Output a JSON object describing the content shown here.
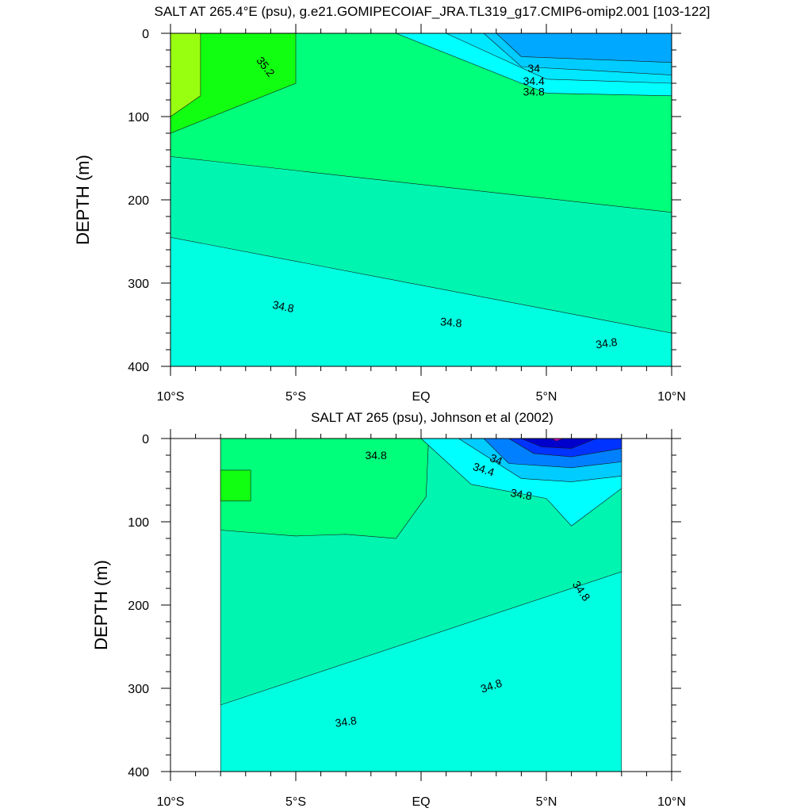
{
  "chart_data": [
    {
      "type": "contour",
      "title": "SALT AT 265.4°E (psu), g.e21.GOMIPECOIAF_JRA.TL319_g17.CMIP6-omip2.001 [103-122]",
      "xlabel": "",
      "ylabel": "DEPTH (m)",
      "xlim": [
        -10,
        10
      ],
      "ylim": [
        400,
        0
      ],
      "x_ticks": [
        -10,
        -5,
        0,
        5,
        10
      ],
      "x_tick_labels": [
        "10°S",
        "5°S",
        "EQ",
        "5°N",
        "10°N"
      ],
      "y_ticks": [
        0,
        100,
        200,
        300,
        400
      ],
      "y_tick_labels": [
        "0",
        "100",
        "200",
        "300",
        "400"
      ],
      "data_extent_x": [
        -10,
        10
      ],
      "contour_labels": [
        {
          "text": "35.2",
          "x": -6.2,
          "depth": 40,
          "angle": 52
        },
        {
          "text": "34",
          "x": 4.5,
          "depth": 42,
          "angle": 0
        },
        {
          "text": "34.4",
          "x": 4.5,
          "depth": 57,
          "angle": 0
        },
        {
          "text": "34.8",
          "x": 4.5,
          "depth": 70,
          "angle": 0
        },
        {
          "text": "34.8",
          "x": -5.5,
          "depth": 328,
          "angle": 12
        },
        {
          "text": "34.8",
          "x": 1.2,
          "depth": 347,
          "angle": 5
        },
        {
          "text": "34.8",
          "x": 7.4,
          "depth": 372,
          "angle": -8
        }
      ],
      "regions": [
        {
          "color": "#00ffe0",
          "x": [
            -10,
            10,
            10,
            -10
          ],
          "depth": [
            0,
            0,
            400,
            400
          ]
        },
        {
          "color": "#00f5b0",
          "x": [
            -10,
            -8,
            -6,
            -4,
            -2,
            0,
            2,
            4,
            6,
            8,
            10,
            10,
            -10
          ],
          "depth": [
            0,
            0,
            0,
            0,
            0,
            0,
            0,
            0,
            0,
            0,
            0,
            360,
            245
          ]
        },
        {
          "color": "#00ff7a",
          "x": [
            -10,
            -8,
            -6,
            -5,
            -4,
            -2,
            0,
            1,
            2,
            3,
            4,
            5,
            6,
            7,
            8,
            9,
            10,
            10,
            -10
          ],
          "depth": [
            0,
            0,
            0,
            0,
            0,
            0,
            0,
            0,
            0,
            0,
            0,
            0,
            0,
            0,
            0,
            0,
            0,
            215,
            148
          ]
        },
        {
          "color": "#11ff11",
          "x": [
            -10,
            -5,
            -5,
            -10
          ],
          "depth": [
            0,
            0,
            60,
            120
          ]
        },
        {
          "color": "#99ff11",
          "x": [
            -10,
            -8.8,
            -8.8,
            -10
          ],
          "depth": [
            0,
            0,
            75,
            100
          ]
        },
        {
          "color": "#00ffff",
          "x": [
            -1,
            10,
            10,
            5,
            -1
          ],
          "depth": [
            0,
            0,
            75,
            72,
            0
          ]
        },
        {
          "color": "#00e8ff",
          "x": [
            1,
            10,
            10,
            5,
            1
          ],
          "depth": [
            0,
            0,
            60,
            55,
            0
          ]
        },
        {
          "color": "#00ccff",
          "x": [
            2.5,
            10,
            10,
            4,
            2.5
          ],
          "depth": [
            0,
            0,
            50,
            40,
            0
          ]
        },
        {
          "color": "#00a8ff",
          "x": [
            3,
            10,
            10,
            4,
            3
          ],
          "depth": [
            0,
            0,
            35,
            28,
            0
          ]
        }
      ]
    },
    {
      "type": "contour",
      "title": "SALT AT 265 (psu), Johnson et al (2002)",
      "xlabel": "",
      "ylabel": "DEPTH (m)",
      "xlim": [
        -10,
        10
      ],
      "ylim": [
        400,
        0
      ],
      "x_ticks": [
        -10,
        -5,
        0,
        5,
        10
      ],
      "x_tick_labels": [
        "10°S",
        "5°S",
        "EQ",
        "5°N",
        "10°N"
      ],
      "y_ticks": [
        0,
        100,
        200,
        300,
        400
      ],
      "y_tick_labels": [
        "0",
        "100",
        "200",
        "300",
        "400"
      ],
      "data_extent_x": [
        -8,
        8
      ],
      "contour_labels": [
        {
          "text": "34.8",
          "x": -1.8,
          "depth": 20,
          "angle": 0
        },
        {
          "text": "34",
          "x": 3,
          "depth": 25,
          "angle": 22
        },
        {
          "text": "34.4",
          "x": 2.5,
          "depth": 37,
          "angle": 18
        },
        {
          "text": "34.8",
          "x": 4,
          "depth": 67,
          "angle": 10
        },
        {
          "text": "34.8",
          "x": 6.4,
          "depth": 183,
          "angle": 55
        },
        {
          "text": "34.8",
          "x": 2.8,
          "depth": 297,
          "angle": -18
        },
        {
          "text": "34.8",
          "x": -3,
          "depth": 340,
          "angle": -8
        }
      ],
      "regions": [
        {
          "color": "#00ffe0",
          "x": [
            -8,
            8,
            8,
            -8
          ],
          "depth": [
            0,
            0,
            400,
            400
          ]
        },
        {
          "color": "#00f5b0",
          "x": [
            -8,
            -7.5,
            -6,
            -4,
            -2,
            0,
            2,
            4,
            5,
            6,
            7,
            8,
            8,
            -8
          ],
          "depth": [
            0,
            0,
            0,
            0,
            0,
            0,
            0,
            0,
            0,
            0,
            0,
            0,
            160,
            320
          ]
        },
        {
          "color": "#00ff7a",
          "x": [
            -8,
            -6.5,
            -5,
            -3.5,
            -1,
            0.3,
            0.2,
            -1,
            -3,
            -5,
            -8
          ],
          "depth": [
            0,
            0,
            0,
            0,
            0,
            0,
            70,
            120,
            115,
            117,
            110
          ]
        },
        {
          "color": "#11ff11",
          "x": [
            -8,
            -6.8,
            -6.8,
            -8
          ],
          "depth": [
            38,
            38,
            75,
            75
          ]
        },
        {
          "color": "#00ffff",
          "x": [
            0,
            8,
            8,
            6,
            5,
            2,
            0
          ],
          "depth": [
            0,
            0,
            60,
            105,
            72,
            55,
            0
          ]
        },
        {
          "color": "#00ccff",
          "x": [
            1.5,
            8,
            8,
            6,
            4,
            1.5
          ],
          "depth": [
            0,
            0,
            45,
            52,
            48,
            0
          ]
        },
        {
          "color": "#0080ff",
          "x": [
            2.5,
            8,
            8,
            6,
            3.5,
            2.5
          ],
          "depth": [
            0,
            0,
            28,
            35,
            30,
            0
          ]
        },
        {
          "color": "#0033ff",
          "x": [
            3.5,
            8,
            8,
            6,
            4.5,
            3.5
          ],
          "depth": [
            0,
            0,
            12,
            22,
            18,
            0
          ]
        },
        {
          "color": "#0000cc",
          "x": [
            4,
            7,
            6,
            4.8,
            4
          ],
          "depth": [
            0,
            0,
            12,
            10,
            0
          ]
        },
        {
          "color": "#cc00cc",
          "x": [
            5.2,
            5.7,
            5.4
          ],
          "depth": [
            0,
            0,
            3
          ]
        }
      ]
    }
  ]
}
